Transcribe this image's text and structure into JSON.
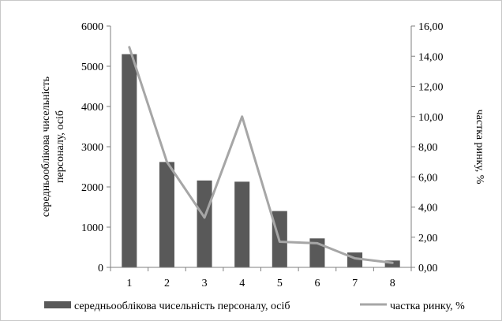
{
  "chart_data": {
    "type": "bar",
    "categories": [
      "1",
      "2",
      "3",
      "4",
      "5",
      "6",
      "7",
      "8"
    ],
    "series": [
      {
        "name": "середньооблікова чисельність персоналу, осіб",
        "type": "bar",
        "axis": "left",
        "color": "#595959",
        "values": [
          5300,
          2620,
          2160,
          2130,
          1400,
          720,
          370,
          170
        ]
      },
      {
        "name": "частка ринку, %",
        "type": "line",
        "axis": "right",
        "color": "#a6a6a6",
        "values": [
          14.6,
          7.0,
          3.3,
          10.0,
          1.7,
          1.6,
          0.6,
          0.3
        ]
      }
    ],
    "ylabel_left": [
      "середньооблікова чисельність",
      "персоналу, осіб"
    ],
    "ylabel_right": "частка ринку, %",
    "ylim_left": [
      0,
      6000
    ],
    "ylim_right": [
      0,
      16
    ],
    "yticks_left": [
      "0",
      "1000",
      "2000",
      "3000",
      "4000",
      "5000",
      "6000"
    ],
    "yticks_right": [
      "0,00",
      "2,00",
      "4,00",
      "6,00",
      "8,00",
      "10,00",
      "12,00",
      "14,00",
      "16,00"
    ],
    "legend_position": "bottom",
    "grid": false
  }
}
